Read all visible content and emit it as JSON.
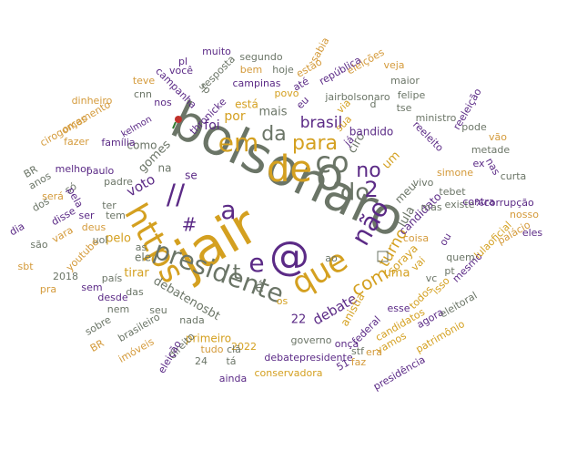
{
  "palette": {
    "purple": "#5b2a86",
    "gold": "#d4a020",
    "gray": "#6b7567",
    "orange": "#d49a3a"
  },
  "words": [
    {
      "text": "jair",
      "color": "gold"
    },
    {
      "text": "bolsonaro",
      "color": "gray"
    },
    {
      "text": "https",
      "color": "gold"
    },
    {
      "text": "presidente",
      "color": "gray"
    },
    {
      "text": "@",
      "color": "purple"
    },
    {
      "text": "de",
      "color": "gold"
    },
    {
      "text": "o",
      "color": "gray"
    },
    {
      "text": "co",
      "color": "gray"
    },
    {
      "text": "que",
      "color": "gold"
    },
    {
      "text": "//",
      "color": "purple"
    },
    {
      "text": "a",
      "color": "purple"
    },
    {
      "text": "não",
      "color": "purple"
    },
    {
      "text": "em",
      "color": "gold"
    },
    {
      "text": "da",
      "color": "gray"
    },
    {
      "text": "para",
      "color": "gold"
    },
    {
      "text": "e",
      "color": "purple"
    },
    {
      "text": "com",
      "color": "gold"
    },
    {
      "text": "do",
      "color": "gray"
    },
    {
      "text": "no",
      "color": "purple"
    },
    {
      "text": "2",
      "color": "purple"
    },
    {
      "text": "t",
      "color": "gray"
    },
    {
      "text": "é",
      "color": "gray"
    },
    {
      "text": "#",
      "color": "purple"
    },
    {
      "text": "turno",
      "color": "gold"
    },
    {
      "text": "lula",
      "color": "gray"
    },
    {
      "text": "brasil",
      "color": "purple"
    },
    {
      "text": "voto",
      "color": "purple"
    },
    {
      "text": "debate",
      "color": "purple"
    },
    {
      "text": "debatenosbt",
      "color": "gray"
    },
    {
      "text": "uma",
      "color": "gold"
    },
    {
      "text": "um",
      "color": "gold"
    },
    {
      "text": "gomes",
      "color": "gray"
    },
    {
      "text": "ciro",
      "color": "gray"
    },
    {
      "text": "bandido",
      "color": "purple"
    },
    {
      "text": "meu",
      "color": "gray"
    },
    {
      "text": "candidato",
      "color": "purple"
    },
    {
      "text": "mais",
      "color": "gray"
    },
    {
      "text": "povo",
      "color": "gold"
    },
    {
      "text": "foi",
      "color": "purple"
    },
    {
      "text": "por",
      "color": "gold"
    },
    {
      "text": "está",
      "color": "gold"
    },
    {
      "text": "22",
      "color": "purple"
    },
    {
      "text": "anistia",
      "color": "gold"
    },
    {
      "text": "soraya",
      "color": "gold"
    },
    {
      "text": "tirar",
      "color": "gold"
    },
    {
      "text": "pelo",
      "color": "gold"
    },
    {
      "text": "ele",
      "color": "gray"
    },
    {
      "text": "se",
      "color": "purple"
    },
    {
      "text": "na",
      "color": "gray"
    },
    {
      "text": "como",
      "color": "gray"
    },
    {
      "text": "tem",
      "color": "gray"
    },
    {
      "text": "as",
      "color": "gray"
    },
    {
      "text": "os",
      "color": "gold"
    },
    {
      "text": "ao",
      "color": "gray"
    },
    {
      "text": "vai",
      "color": "gold"
    },
    {
      "text": "primeiro",
      "color": "gold"
    },
    {
      "text": "2022",
      "color": "gold"
    },
    {
      "text": "governo",
      "color": "gray"
    },
    {
      "text": "debatepresidente",
      "color": "purple"
    },
    {
      "text": "conservadora",
      "color": "gold"
    },
    {
      "text": "federal",
      "color": "purple"
    },
    {
      "text": "candidatos",
      "color": "gold"
    },
    {
      "text": "agora",
      "color": "purple"
    },
    {
      "text": "eleitoral",
      "color": "gray"
    },
    {
      "text": "vamos",
      "color": "gold"
    },
    {
      "text": "patrimônio",
      "color": "gold"
    },
    {
      "text": "presidência",
      "color": "purple"
    },
    {
      "text": "esse",
      "color": "purple"
    },
    {
      "text": "todos",
      "color": "gold"
    },
    {
      "text": "isso",
      "color": "gold"
    },
    {
      "text": "mesmo",
      "color": "purple"
    },
    {
      "text": "lulaoficial",
      "color": "gold"
    },
    {
      "text": "palácio",
      "color": "orange"
    },
    {
      "text": "eles",
      "color": "purple"
    },
    {
      "text": "quem",
      "color": "gray"
    },
    {
      "text": "pt",
      "color": "gray"
    },
    {
      "text": "vc",
      "color": "gray"
    },
    {
      "text": "existe",
      "color": "gray"
    },
    {
      "text": "mas",
      "color": "gray"
    },
    {
      "text": "simone",
      "color": "orange"
    },
    {
      "text": "vivo",
      "color": "gray"
    },
    {
      "text": "tebet",
      "color": "gray"
    },
    {
      "text": "contra",
      "color": "purple"
    },
    {
      "text": "%corrupção",
      "color": "purple"
    },
    {
      "text": "nosso",
      "color": "orange"
    },
    {
      "text": "ou",
      "color": "purple"
    },
    {
      "text": "nas",
      "color": "purple"
    },
    {
      "text": "curta",
      "color": "gray"
    },
    {
      "text": "metade",
      "color": "gray"
    },
    {
      "text": "vão",
      "color": "orange"
    },
    {
      "text": "pode",
      "color": "gray"
    },
    {
      "text": "ex",
      "color": "purple"
    },
    {
      "text": "reeleito",
      "color": "purple"
    },
    {
      "text": "ministro",
      "color": "gray"
    },
    {
      "text": "reeleição",
      "color": "purple"
    },
    {
      "text": "felipe",
      "color": "gray"
    },
    {
      "text": "tse",
      "color": "gray"
    },
    {
      "text": "maior",
      "color": "gray"
    },
    {
      "text": "veja",
      "color": "orange"
    },
    {
      "text": "eleições",
      "color": "orange"
    },
    {
      "text": "sabia",
      "color": "orange"
    },
    {
      "text": "república",
      "color": "purple"
    },
    {
      "text": "jairbolsonaro",
      "color": "gray"
    },
    {
      "text": "d",
      "color": "gray"
    },
    {
      "text": "estão",
      "color": "orange"
    },
    {
      "text": "segundo",
      "color": "gray"
    },
    {
      "text": "bem",
      "color": "orange"
    },
    {
      "text": "hoje",
      "color": "gray"
    },
    {
      "text": "campinas",
      "color": "purple"
    },
    {
      "text": "até",
      "color": "purple"
    },
    {
      "text": "eu",
      "color": "purple"
    },
    {
      "text": "via",
      "color": "gold"
    },
    {
      "text": "sua",
      "color": "gold"
    },
    {
      "text": "já",
      "color": "purple"
    },
    {
      "text": "pl",
      "color": "purple"
    },
    {
      "text": "muito",
      "color": "purple"
    },
    {
      "text": "você",
      "color": "purple"
    },
    {
      "text": "resposta",
      "color": "gray"
    },
    {
      "text": "teve",
      "color": "orange"
    },
    {
      "text": "cnn",
      "color": "gray"
    },
    {
      "text": "campanha",
      "color": "purple"
    },
    {
      "text": "sp",
      "color": "gray"
    },
    {
      "text": "nos",
      "color": "purple"
    },
    {
      "text": "thronicke",
      "color": "purple"
    },
    {
      "text": "dinheiro",
      "color": "orange"
    },
    {
      "text": "cirogomes",
      "color": "orange"
    },
    {
      "text": "orçamento",
      "color": "orange"
    },
    {
      "text": "fazer",
      "color": "orange"
    },
    {
      "text": "família",
      "color": "purple"
    },
    {
      "text": "kelmon",
      "color": "purple"
    },
    {
      "text": "BR",
      "color": "gray"
    },
    {
      "text": "melhor",
      "color": "purple"
    },
    {
      "text": "anos",
      "color": "gray"
    },
    {
      "text": "paulo",
      "color": "purple"
    },
    {
      "text": "padre",
      "color": "gray"
    },
    {
      "text": "só",
      "color": "gray"
    },
    {
      "text": "será",
      "color": "orange"
    },
    {
      "text": "pela",
      "color": "purple"
    },
    {
      "text": "ter",
      "color": "gray"
    },
    {
      "text": "dos",
      "color": "gray"
    },
    {
      "text": "disse",
      "color": "purple"
    },
    {
      "text": "dia",
      "color": "purple"
    },
    {
      "text": "vara",
      "color": "orange"
    },
    {
      "text": "deus",
      "color": "orange"
    },
    {
      "text": "ser",
      "color": "purple"
    },
    {
      "text": "uol",
      "color": "gray"
    },
    {
      "text": "são",
      "color": "gray"
    },
    {
      "text": "youtube",
      "color": "orange"
    },
    {
      "text": "sbt",
      "color": "orange"
    },
    {
      "text": "2018",
      "color": "gray"
    },
    {
      "text": "sem",
      "color": "purple"
    },
    {
      "text": "país",
      "color": "gray"
    },
    {
      "text": "das",
      "color": "gray"
    },
    {
      "text": "pra",
      "color": "orange"
    },
    {
      "text": "desde",
      "color": "purple"
    },
    {
      "text": "nem",
      "color": "gray"
    },
    {
      "text": "seu",
      "color": "gray"
    },
    {
      "text": "sobre",
      "color": "gray"
    },
    {
      "text": "brasileiro",
      "color": "gray"
    },
    {
      "text": "nada",
      "color": "gray"
    },
    {
      "text": "BR",
      "color": "orange"
    },
    {
      "text": "direito",
      "color": "gray"
    },
    {
      "text": "imóveis",
      "color": "orange"
    },
    {
      "text": "eleição",
      "color": "purple"
    },
    {
      "text": "tudo",
      "color": "orange"
    },
    {
      "text": "clã",
      "color": "gray"
    },
    {
      "text": "24",
      "color": "gray"
    },
    {
      "text": "tá",
      "color": "gray"
    },
    {
      "text": "ainda",
      "color": "purple"
    },
    {
      "text": "onça",
      "color": "purple"
    },
    {
      "text": "stf",
      "color": "gray"
    },
    {
      "text": "faz",
      "color": "orange"
    },
    {
      "text": "era",
      "color": "orange"
    },
    {
      "text": "51",
      "color": "purple"
    },
    {
      "text": "coisa",
      "color": "orange"
    },
    {
      "text": "4",
      "color": "gray"
    }
  ]
}
